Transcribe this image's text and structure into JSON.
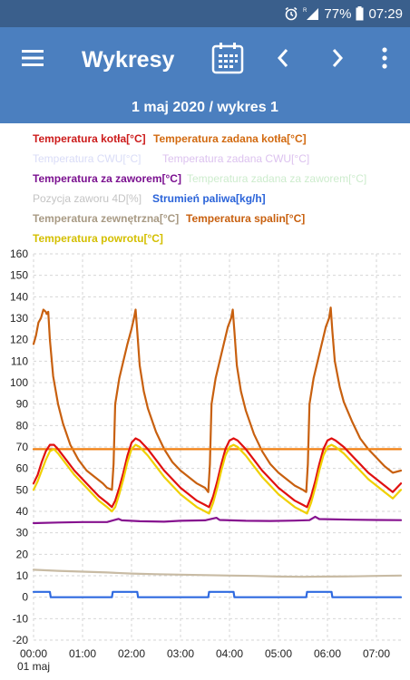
{
  "status_bar": {
    "battery": "77%",
    "time": "07:29",
    "icons": [
      "alarm-icon",
      "signal-icon",
      "battery-icon"
    ]
  },
  "app_bar": {
    "title": "Wykresy",
    "icons": [
      "menu-icon",
      "calendar-icon",
      "chevron-left-icon",
      "chevron-right-icon",
      "more-vert-icon"
    ]
  },
  "subtitle": "1 maj 2020 / wykres 1",
  "legend": [
    {
      "label": "Temperatura kotła[°C]",
      "color": "#cc1b1b",
      "active": true
    },
    {
      "label": "Temperatura zadana kotła[°C]",
      "color": "#d26a10",
      "active": true
    },
    {
      "label": "Temperatura CWU[°C]",
      "color": "#d9dcf7",
      "active": false
    },
    {
      "label": "Temperatura zadana CWU[°C]",
      "color": "#dcc2ef",
      "active": false
    },
    {
      "label": "Temperatura za zaworem[°C]",
      "color": "#7b1190",
      "active": true
    },
    {
      "label": "Temperatura zadana za zaworem[°C]",
      "color": "#cdeccd",
      "active": false
    },
    {
      "label": "Pozycja zaworu 4D[%]",
      "color": "#c4c4c4",
      "active": false
    },
    {
      "label": "Strumień paliwa[kg/h]",
      "color": "#2a63d9",
      "active": true
    },
    {
      "label": "Temperatura zewnętrzna[°C]",
      "color": "#a89a84",
      "active": true
    },
    {
      "label": "Temperatura spalin[°C]",
      "color": "#c8600f",
      "active": true
    },
    {
      "label": "Temperatura powrotu[°C]",
      "color": "#d4bf00",
      "active": true
    }
  ],
  "chart_data": {
    "type": "line",
    "ylim": [
      -20,
      160
    ],
    "yticks": [
      "160",
      "150",
      "140",
      "130",
      "120",
      "110",
      "100",
      "90",
      "80",
      "70",
      "60",
      "50",
      "40",
      "30",
      "20",
      "10",
      "0",
      "-10",
      "-20"
    ],
    "xlim": [
      "00:00",
      "07:30"
    ],
    "xticks": [
      "00:00",
      "01:00",
      "02:00",
      "03:00",
      "04:00",
      "05:00",
      "06:00",
      "07:00"
    ],
    "xtick_date": "01 maj",
    "grid": true,
    "series": [
      {
        "name": "Temperatura spalin[°C]",
        "color": "#c8600f",
        "width": 2.2,
        "points": [
          [
            "00:00",
            118
          ],
          [
            "00:03",
            122
          ],
          [
            "00:06",
            128
          ],
          [
            "00:09",
            130
          ],
          [
            "00:12",
            134
          ],
          [
            "00:15",
            133
          ],
          [
            "00:16",
            132
          ],
          [
            "00:18",
            133
          ],
          [
            "00:20",
            120
          ],
          [
            "00:24",
            103
          ],
          [
            "00:30",
            90
          ],
          [
            "00:36",
            81
          ],
          [
            "00:45",
            71
          ],
          [
            "00:55",
            64
          ],
          [
            "01:05",
            59
          ],
          [
            "01:15",
            56
          ],
          [
            "01:25",
            53
          ],
          [
            "01:30",
            51
          ],
          [
            "01:36",
            50
          ],
          [
            "01:38",
            62
          ],
          [
            "01:40",
            90
          ],
          [
            "01:45",
            102
          ],
          [
            "01:50",
            110
          ],
          [
            "01:55",
            118
          ],
          [
            "02:00",
            125
          ],
          [
            "02:03",
            130
          ],
          [
            "02:05",
            134
          ],
          [
            "02:07",
            124
          ],
          [
            "02:10",
            108
          ],
          [
            "02:15",
            96
          ],
          [
            "02:20",
            88
          ],
          [
            "02:30",
            77
          ],
          [
            "02:40",
            69
          ],
          [
            "02:50",
            63
          ],
          [
            "03:00",
            59
          ],
          [
            "03:10",
            56
          ],
          [
            "03:20",
            53
          ],
          [
            "03:30",
            51
          ],
          [
            "03:34",
            49
          ],
          [
            "03:36",
            62
          ],
          [
            "03:38",
            90
          ],
          [
            "03:43",
            102
          ],
          [
            "03:48",
            110
          ],
          [
            "03:53",
            118
          ],
          [
            "03:58",
            126
          ],
          [
            "04:02",
            130
          ],
          [
            "04:04",
            134
          ],
          [
            "04:06",
            124
          ],
          [
            "04:09",
            108
          ],
          [
            "04:14",
            96
          ],
          [
            "04:20",
            87
          ],
          [
            "04:30",
            76
          ],
          [
            "04:40",
            68
          ],
          [
            "04:50",
            62
          ],
          [
            "05:00",
            58
          ],
          [
            "05:10",
            55
          ],
          [
            "05:20",
            52
          ],
          [
            "05:30",
            50
          ],
          [
            "05:34",
            49
          ],
          [
            "05:36",
            62
          ],
          [
            "05:38",
            90
          ],
          [
            "05:43",
            102
          ],
          [
            "05:48",
            110
          ],
          [
            "05:53",
            118
          ],
          [
            "05:58",
            126
          ],
          [
            "06:02",
            130
          ],
          [
            "06:04",
            135
          ],
          [
            "06:06",
            124
          ],
          [
            "06:09",
            110
          ],
          [
            "06:15",
            98
          ],
          [
            "06:20",
            91
          ],
          [
            "06:30",
            82
          ],
          [
            "06:40",
            74
          ],
          [
            "06:50",
            69
          ],
          [
            "07:00",
            65
          ],
          [
            "07:10",
            61
          ],
          [
            "07:20",
            58
          ],
          [
            "07:30",
            59
          ]
        ]
      },
      {
        "name": "Temperatura zadana kotła[°C]",
        "color": "#f07f10",
        "width": 2.2,
        "points": [
          [
            "00:00",
            69
          ],
          [
            "07:30",
            69
          ]
        ]
      },
      {
        "name": "Temperatura kotła[°C]",
        "color": "#e01010",
        "width": 2.2,
        "points": [
          [
            "00:00",
            53
          ],
          [
            "00:05",
            57
          ],
          [
            "00:10",
            63
          ],
          [
            "00:15",
            68
          ],
          [
            "00:20",
            71
          ],
          [
            "00:25",
            71
          ],
          [
            "00:30",
            69
          ],
          [
            "00:40",
            64
          ],
          [
            "00:50",
            59
          ],
          [
            "01:00",
            55
          ],
          [
            "01:10",
            51
          ],
          [
            "01:20",
            47
          ],
          [
            "01:30",
            44
          ],
          [
            "01:36",
            42
          ],
          [
            "01:40",
            45
          ],
          [
            "01:45",
            51
          ],
          [
            "01:50",
            58
          ],
          [
            "01:55",
            66
          ],
          [
            "02:00",
            72
          ],
          [
            "02:05",
            74
          ],
          [
            "02:10",
            73
          ],
          [
            "02:20",
            69
          ],
          [
            "02:30",
            64
          ],
          [
            "02:40",
            59
          ],
          [
            "02:50",
            55
          ],
          [
            "03:00",
            51
          ],
          [
            "03:10",
            48
          ],
          [
            "03:20",
            45
          ],
          [
            "03:30",
            43
          ],
          [
            "03:35",
            42
          ],
          [
            "03:40",
            47
          ],
          [
            "03:45",
            54
          ],
          [
            "03:50",
            62
          ],
          [
            "03:55",
            69
          ],
          [
            "04:00",
            73
          ],
          [
            "04:05",
            74
          ],
          [
            "04:10",
            73
          ],
          [
            "04:20",
            69
          ],
          [
            "04:30",
            64
          ],
          [
            "04:40",
            59
          ],
          [
            "04:50",
            55
          ],
          [
            "05:00",
            51
          ],
          [
            "05:10",
            48
          ],
          [
            "05:20",
            45
          ],
          [
            "05:30",
            43
          ],
          [
            "05:35",
            42
          ],
          [
            "05:40",
            47
          ],
          [
            "05:45",
            54
          ],
          [
            "05:50",
            62
          ],
          [
            "05:55",
            69
          ],
          [
            "06:00",
            73
          ],
          [
            "06:05",
            74
          ],
          [
            "06:10",
            73
          ],
          [
            "06:20",
            70
          ],
          [
            "06:30",
            66
          ],
          [
            "06:40",
            62
          ],
          [
            "06:50",
            58
          ],
          [
            "07:00",
            55
          ],
          [
            "07:10",
            52
          ],
          [
            "07:20",
            49
          ],
          [
            "07:30",
            53
          ]
        ]
      },
      {
        "name": "Temperatura powrotu[°C]",
        "color": "#f0d000",
        "width": 2.2,
        "points": [
          [
            "00:00",
            50
          ],
          [
            "00:05",
            54
          ],
          [
            "00:10",
            59
          ],
          [
            "00:15",
            64
          ],
          [
            "00:20",
            68
          ],
          [
            "00:25",
            69
          ],
          [
            "00:30",
            67
          ],
          [
            "00:40",
            62
          ],
          [
            "00:50",
            57
          ],
          [
            "01:00",
            53
          ],
          [
            "01:10",
            49
          ],
          [
            "01:20",
            45
          ],
          [
            "01:30",
            42
          ],
          [
            "01:36",
            40
          ],
          [
            "01:40",
            42
          ],
          [
            "01:45",
            48
          ],
          [
            "01:50",
            55
          ],
          [
            "01:55",
            63
          ],
          [
            "02:00",
            69
          ],
          [
            "02:05",
            71
          ],
          [
            "02:10",
            70
          ],
          [
            "02:20",
            66
          ],
          [
            "02:30",
            61
          ],
          [
            "02:40",
            56
          ],
          [
            "02:50",
            52
          ],
          [
            "03:00",
            48
          ],
          [
            "03:10",
            45
          ],
          [
            "03:20",
            42
          ],
          [
            "03:30",
            40
          ],
          [
            "03:35",
            39
          ],
          [
            "03:40",
            44
          ],
          [
            "03:45",
            51
          ],
          [
            "03:50",
            59
          ],
          [
            "03:55",
            66
          ],
          [
            "04:00",
            70
          ],
          [
            "04:05",
            71
          ],
          [
            "04:10",
            70
          ],
          [
            "04:20",
            66
          ],
          [
            "04:30",
            61
          ],
          [
            "04:40",
            56
          ],
          [
            "04:50",
            52
          ],
          [
            "05:00",
            48
          ],
          [
            "05:10",
            45
          ],
          [
            "05:20",
            42
          ],
          [
            "05:30",
            40
          ],
          [
            "05:35",
            39
          ],
          [
            "05:40",
            44
          ],
          [
            "05:45",
            51
          ],
          [
            "05:50",
            59
          ],
          [
            "05:55",
            66
          ],
          [
            "06:00",
            70
          ],
          [
            "06:05",
            71
          ],
          [
            "06:10",
            70
          ],
          [
            "06:20",
            67
          ],
          [
            "06:30",
            63
          ],
          [
            "06:40",
            59
          ],
          [
            "06:50",
            55
          ],
          [
            "07:00",
            52
          ],
          [
            "07:10",
            49
          ],
          [
            "07:20",
            46
          ],
          [
            "07:30",
            50
          ]
        ]
      },
      {
        "name": "Temperatura za zaworem[°C]",
        "color": "#86128f",
        "width": 2.2,
        "points": [
          [
            "00:00",
            34.5
          ],
          [
            "00:30",
            34.8
          ],
          [
            "01:00",
            35
          ],
          [
            "01:30",
            35
          ],
          [
            "01:44",
            36.5
          ],
          [
            "01:48",
            35.8
          ],
          [
            "02:10",
            35.4
          ],
          [
            "02:40",
            35.2
          ],
          [
            "03:00",
            35.6
          ],
          [
            "03:30",
            35.8
          ],
          [
            "03:44",
            37
          ],
          [
            "03:48",
            36
          ],
          [
            "04:20",
            35.6
          ],
          [
            "04:50",
            35.5
          ],
          [
            "05:20",
            35.7
          ],
          [
            "05:38",
            35.9
          ],
          [
            "05:45",
            37.5
          ],
          [
            "05:50",
            36.4
          ],
          [
            "06:30",
            36.1
          ],
          [
            "07:00",
            36
          ],
          [
            "07:30",
            35.9
          ]
        ]
      },
      {
        "name": "Temperatura zewnętrzna[°C]",
        "color": "#c8bba4",
        "width": 2.2,
        "points": [
          [
            "00:00",
            12.8
          ],
          [
            "00:30",
            12.3
          ],
          [
            "01:00",
            11.9
          ],
          [
            "01:30",
            11.5
          ],
          [
            "02:00",
            11
          ],
          [
            "02:30",
            10.7
          ],
          [
            "03:00",
            10.5
          ],
          [
            "03:30",
            10.3
          ],
          [
            "04:00",
            10.1
          ],
          [
            "04:30",
            9.9
          ],
          [
            "05:00",
            9.6
          ],
          [
            "05:30",
            9.5
          ],
          [
            "06:00",
            9.6
          ],
          [
            "06:30",
            9.7
          ],
          [
            "07:00",
            9.9
          ],
          [
            "07:30",
            10.1
          ]
        ]
      },
      {
        "name": "Strumień paliwa[kg/h]",
        "color": "#2f6ae0",
        "width": 2.2,
        "points": [
          [
            "00:00",
            2.5
          ],
          [
            "00:20",
            2.5
          ],
          [
            "00:21",
            0
          ],
          [
            "01:36",
            0
          ],
          [
            "01:37",
            2.5
          ],
          [
            "02:07",
            2.5
          ],
          [
            "02:08",
            0
          ],
          [
            "03:34",
            0
          ],
          [
            "03:35",
            2.5
          ],
          [
            "04:05",
            2.5
          ],
          [
            "04:06",
            0
          ],
          [
            "05:34",
            0
          ],
          [
            "05:35",
            2.5
          ],
          [
            "06:05",
            2.5
          ],
          [
            "06:06",
            0
          ],
          [
            "07:30",
            0
          ]
        ]
      }
    ]
  }
}
